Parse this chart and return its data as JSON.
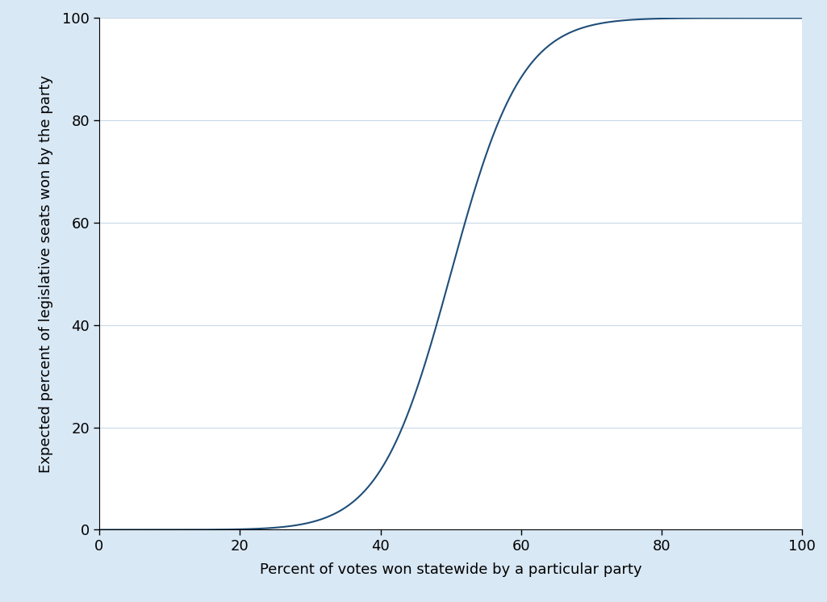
{
  "xlabel": "Percent of votes won statewide by a particular party",
  "ylabel": "Expected percent of legislative seats won by the party",
  "xlim": [
    0,
    100
  ],
  "ylim": [
    0,
    100
  ],
  "xticks": [
    0,
    20,
    40,
    60,
    80,
    100
  ],
  "yticks": [
    0,
    20,
    40,
    60,
    80,
    100
  ],
  "line_color": "#1f4e79",
  "background_color": "#d9e8f5",
  "plot_bg_color": "#ffffff",
  "grid_color": "#c8d8e8",
  "xlabel_fontsize": 13,
  "ylabel_fontsize": 13,
  "tick_fontsize": 13,
  "cube_exponent": 5.0
}
